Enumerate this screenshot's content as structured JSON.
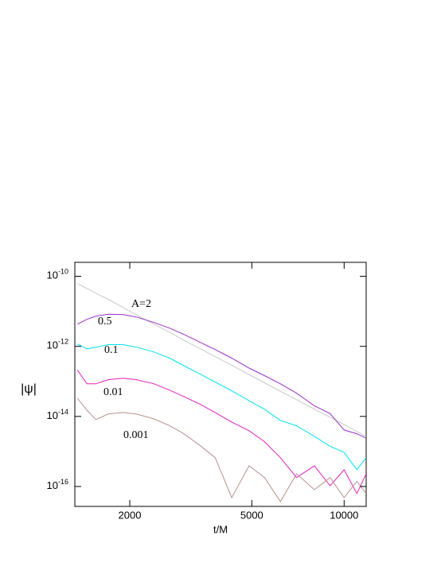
{
  "chart_data": {
    "type": "line",
    "xlabel": "t/M",
    "ylabel": "|ψ|",
    "xscale": "log",
    "yscale": "log",
    "xlim": [
      1324,
      11800
    ],
    "ylim": [
      2.5e-10,
      2.7e-17
    ],
    "xticks": [
      2000,
      5000,
      10000
    ],
    "yticks": [
      {
        "value": 1e-10,
        "label": "10-10"
      },
      {
        "value": 1e-12,
        "label": "10-12"
      },
      {
        "value": 1e-14,
        "label": "10-14"
      },
      {
        "value": 1e-16,
        "label": "10-16"
      }
    ],
    "x": [
      1350,
      1450,
      1550,
      1700,
      1900,
      2100,
      2400,
      2700,
      3000,
      3400,
      3800,
      4300,
      4900,
      5500,
      6200,
      7000,
      8000,
      9000,
      10000,
      11000,
      11800
    ],
    "series": [
      {
        "name": "A=2",
        "color": "#c8c8c8",
        "values": [
          6.2e-11,
          4.5e-11,
          3.3e-11,
          2.2e-11,
          1.3e-11,
          8e-12,
          4.3e-12,
          2.5e-12,
          1.5e-12,
          8.5e-13,
          5.1e-13,
          2.9e-13,
          1.56e-13,
          9.1e-14,
          5.2e-14,
          3e-14,
          1.6e-14,
          9.5e-15,
          5.8e-15,
          3.7e-15,
          2.7e-15
        ]
      },
      {
        "name": "0.5",
        "color": "#9b30c8",
        "values": [
          4.3e-12,
          5.9e-12,
          7.3e-12,
          8.3e-12,
          8.1e-12,
          6.9e-12,
          4.8e-12,
          3.3e-12,
          2.2e-12,
          1.3e-12,
          8.1e-13,
          4.6e-13,
          2.4e-13,
          1.46e-13,
          8.5e-14,
          4.6e-14,
          2e-14,
          1.2e-14,
          4.1e-15,
          3.2e-15,
          2.4e-15
        ]
      },
      {
        "name": "0.1",
        "color": "#00e0f0",
        "values": [
          1.17e-12,
          8.5e-13,
          9.5e-13,
          1.12e-12,
          1.12e-12,
          9.5e-13,
          6.9e-13,
          4.6e-13,
          2.8e-13,
          1.6e-13,
          9.5e-14,
          5.4e-14,
          2.8e-14,
          1.6e-14,
          7.7e-15,
          5.4e-15,
          2.7e-15,
          1.4e-15,
          9.5e-16,
          3e-16,
          6.6e-16
        ]
      },
      {
        "name": "0.01",
        "color": "#e020c0",
        "values": [
          2.1e-13,
          8.5e-14,
          8.5e-14,
          1.12e-13,
          1.23e-13,
          1.12e-13,
          8.5e-14,
          5.6e-14,
          3.7e-14,
          2.2e-14,
          1.29e-14,
          6.9e-15,
          3.9e-15,
          1.9e-15,
          6.6e-16,
          1.8e-16,
          3.9e-16,
          1.05e-16,
          3e-16,
          6.3e-17,
          2.3e-16
        ]
      },
      {
        "name": "0.001",
        "color": "#b89090",
        "values": [
          3.3e-14,
          1.5e-14,
          8.1e-15,
          1.17e-14,
          1.29e-14,
          1.17e-14,
          8.5e-15,
          5.4e-15,
          3.2e-15,
          1.45e-15,
          6.6e-16,
          4.8e-17,
          3.9e-16,
          1.8e-16,
          3.7e-17,
          2.3e-16,
          8.1e-17,
          1.8e-16,
          4.8e-17,
          1.4e-16,
          6.3e-17
        ]
      }
    ]
  }
}
